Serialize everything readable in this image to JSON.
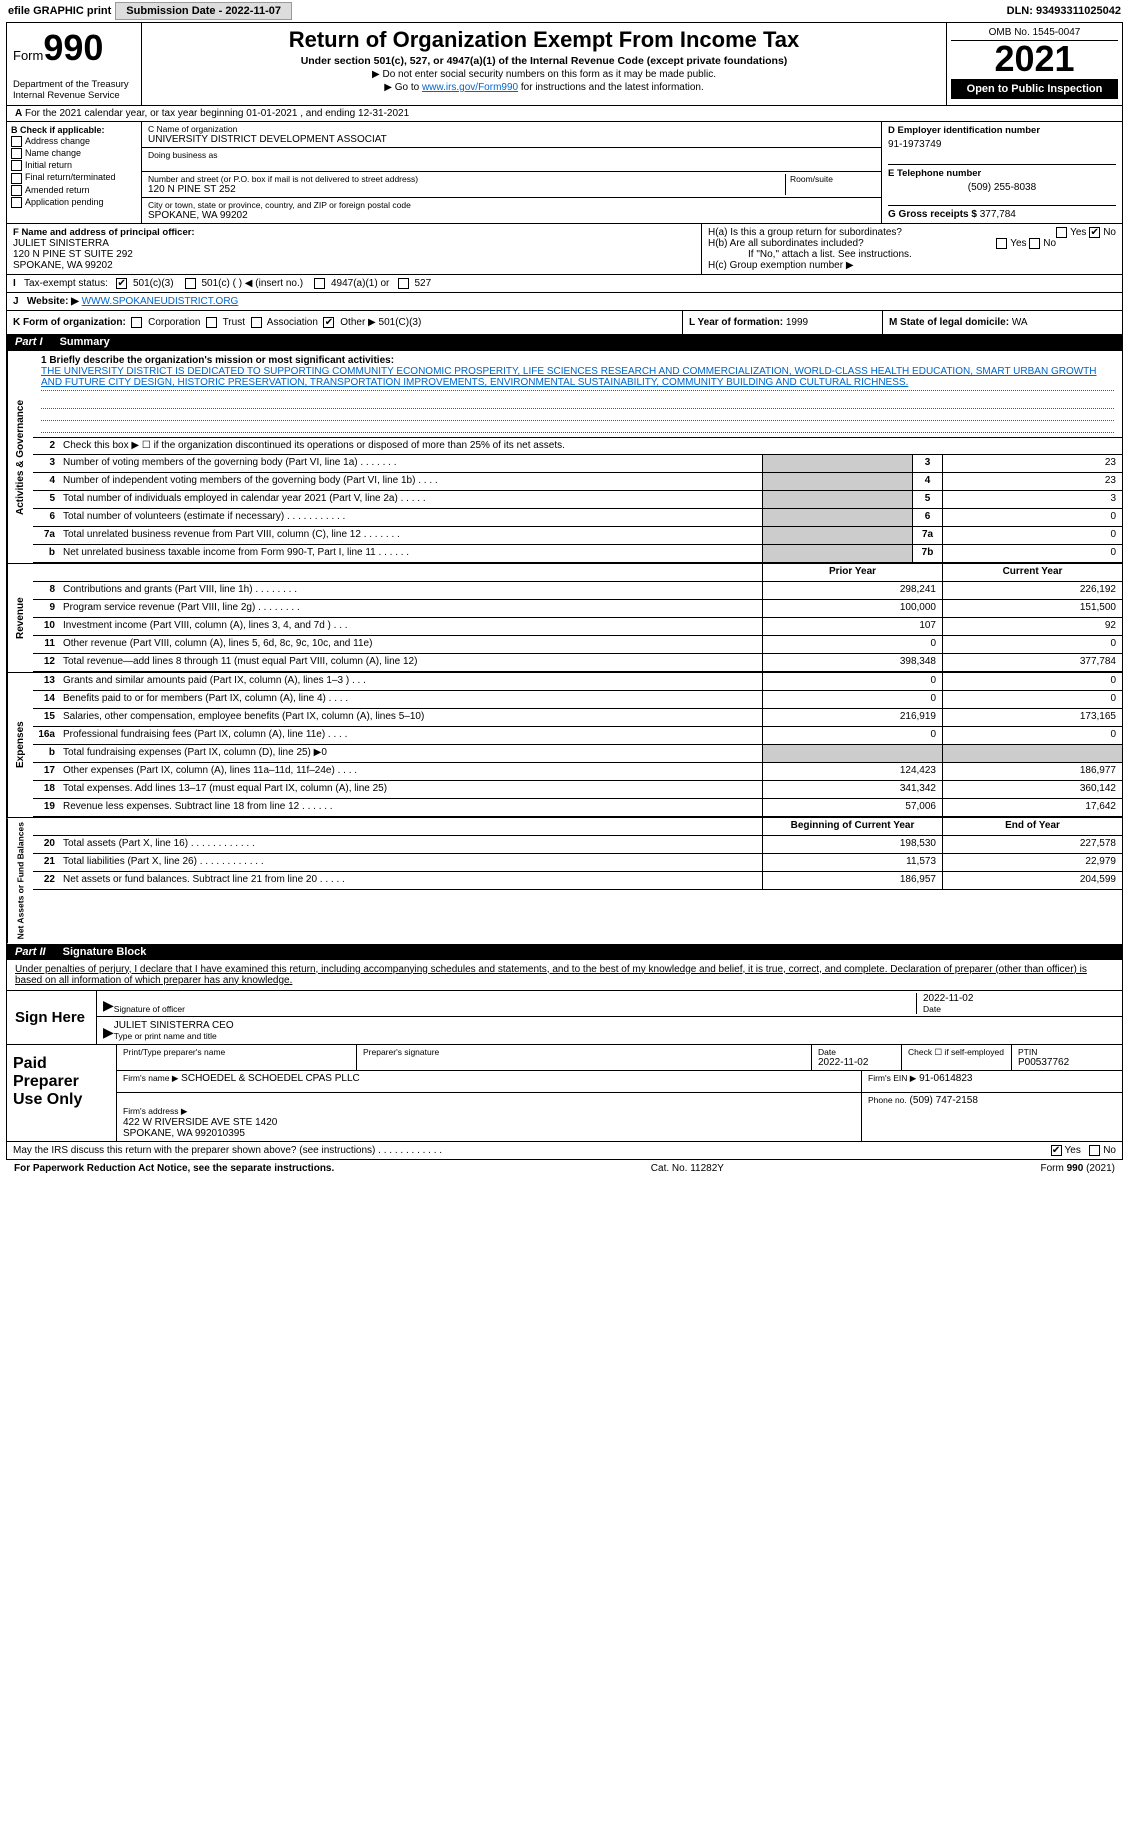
{
  "top_bar": {
    "efile_label": "efile GRAPHIC print",
    "submission_label": "Submission Date - 2022-11-07",
    "dln": "DLN: 93493311025042"
  },
  "header": {
    "form_label": "Form",
    "form_number": "990",
    "title": "Return of Organization Exempt From Income Tax",
    "subtitle": "Under section 501(c), 527, or 4947(a)(1) of the Internal Revenue Code (except private foundations)",
    "note1": "▶ Do not enter social security numbers on this form as it may be made public.",
    "note2_pre": "▶ Go to ",
    "note2_link": "www.irs.gov/Form990",
    "note2_post": " for instructions and the latest information.",
    "dept": "Department of the Treasury\nInternal Revenue Service",
    "omb": "OMB No. 1545-0047",
    "year": "2021",
    "open_pub": "Open to Public Inspection"
  },
  "line_a": "For the 2021 calendar year, or tax year beginning 01-01-2021    , and ending 12-31-2021",
  "box_b": {
    "label": "B Check if applicable:",
    "opts": [
      "Address change",
      "Name change",
      "Initial return",
      "Final return/terminated",
      "Amended return",
      "Application pending"
    ]
  },
  "box_c": {
    "name_label": "C Name of organization",
    "name": "UNIVERSITY DISTRICT DEVELOPMENT ASSOCIAT",
    "dba_label": "Doing business as",
    "addr_label": "Number and street (or P.O. box if mail is not delivered to street address)",
    "room_label": "Room/suite",
    "addr": "120 N PINE ST 252",
    "city_label": "City or town, state or province, country, and ZIP or foreign postal code",
    "city": "SPOKANE, WA  99202"
  },
  "box_d": {
    "label": "D Employer identification number",
    "val": "91-1973749",
    "e_label": "E Telephone number",
    "e_val": "(509) 255-8038",
    "g_label": "G Gross receipts $",
    "g_val": "377,784"
  },
  "box_f": {
    "label": "F Name and address of principal officer:",
    "name": "JULIET SINISTERRA",
    "addr": "120 N PINE ST SUITE 292\nSPOKANE, WA  99202"
  },
  "box_h": {
    "a_label": "H(a)  Is this a group return for subordinates?",
    "a_yes": "Yes",
    "a_no": "No",
    "b_label": "H(b)  Are all subordinates included?",
    "b_yes": "Yes",
    "b_no": "No",
    "b_note": "If \"No,\" attach a list. See instructions.",
    "c_label": "H(c)  Group exemption number ▶"
  },
  "tax_status_row": {
    "i_label": "I",
    "label": "Tax-exempt status:",
    "opt1": "501(c)(3)",
    "opt2": "501(c) (  ) ◀ (insert no.)",
    "opt3": "4947(a)(1) or",
    "opt4": "527"
  },
  "website_row": {
    "j_label": "J",
    "label": "Website: ▶",
    "url": "WWW.SPOKANEUDISTRICT.ORG"
  },
  "k_row": {
    "label": "K Form of organization:",
    "opts": [
      "Corporation",
      "Trust",
      "Association",
      "Other ▶"
    ],
    "other_val": "501(C)(3)",
    "l_label": "L Year of formation:",
    "l_val": "1999",
    "m_label": "M State of legal domicile:",
    "m_val": "WA"
  },
  "part1": {
    "header_pt": "Part I",
    "header_title": "Summary",
    "q1_label": "1 Briefly describe the organization's mission or most significant activities:",
    "mission": "THE UNIVERSITY DISTRICT IS DEDICATED TO SUPPORTING COMMUNITY ECONOMIC PROSPERITY, LIFE SCIENCES RESEARCH AND COMMERCIALIZATION, WORLD-CLASS HEALTH EDUCATION, SMART URBAN GROWTH AND FUTURE CITY DESIGN, HISTORIC PRESERVATION, TRANSPORTATION IMPROVEMENTS, ENVIRONMENTAL SUSTAINABILITY, COMMUNITY BUILDING AND CULTURAL RICHNESS.",
    "q2": "Check this box ▶ ☐  if the organization discontinued its operations or disposed of more than 25% of its net assets.",
    "side_ag": "Activities & Governance",
    "side_rev": "Revenue",
    "side_exp": "Expenses",
    "side_net": "Net Assets or Fund Balances",
    "col_prior": "Prior Year",
    "col_curr": "Current Year",
    "col_begin": "Beginning of Current Year",
    "col_end": "End of Year",
    "rows_ag": [
      {
        "n": "3",
        "d": "Number of voting members of the governing body (Part VI, line 1a)   .    .    .    .    .    .    .",
        "k": "3",
        "v": "23"
      },
      {
        "n": "4",
        "d": "Number of independent voting members of the governing body (Part VI, line 1b)    .    .    .    .",
        "k": "4",
        "v": "23"
      },
      {
        "n": "5",
        "d": "Total number of individuals employed in calendar year 2021 (Part V, line 2a)   .    .    .    .    .",
        "k": "5",
        "v": "3"
      },
      {
        "n": "6",
        "d": "Total number of volunteers (estimate if necessary)    .    .    .    .    .    .    .    .    .    .    .",
        "k": "6",
        "v": "0"
      },
      {
        "n": "7a",
        "d": "Total unrelated business revenue from Part VIII, column (C), line 12   .    .    .    .    .    .    .",
        "k": "7a",
        "v": "0"
      },
      {
        "n": "b",
        "d": "Net unrelated business taxable income from Form 990-T, Part I, line 11   .    .    .    .    .    .",
        "k": "7b",
        "v": "0"
      }
    ],
    "rows_rev": [
      {
        "n": "8",
        "d": "Contributions and grants (Part VIII, line 1h)    .    .    .    .    .    .    .    .",
        "p": "298,241",
        "c": "226,192"
      },
      {
        "n": "9",
        "d": "Program service revenue (Part VIII, line 2g)    .    .    .    .    .    .    .    .",
        "p": "100,000",
        "c": "151,500"
      },
      {
        "n": "10",
        "d": "Investment income (Part VIII, column (A), lines 3, 4, and 7d )   .    .    .",
        "p": "107",
        "c": "92"
      },
      {
        "n": "11",
        "d": "Other revenue (Part VIII, column (A), lines 5, 6d, 8c, 9c, 10c, and 11e)",
        "p": "0",
        "c": "0"
      },
      {
        "n": "12",
        "d": "Total revenue—add lines 8 through 11 (must equal Part VIII, column (A), line 12)",
        "p": "398,348",
        "c": "377,784"
      }
    ],
    "rows_exp": [
      {
        "n": "13",
        "d": "Grants and similar amounts paid (Part IX, column (A), lines 1–3 )   .    .    .",
        "p": "0",
        "c": "0"
      },
      {
        "n": "14",
        "d": "Benefits paid to or for members (Part IX, column (A), line 4)   .    .    .    .",
        "p": "0",
        "c": "0"
      },
      {
        "n": "15",
        "d": "Salaries, other compensation, employee benefits (Part IX, column (A), lines 5–10)",
        "p": "216,919",
        "c": "173,165"
      },
      {
        "n": "16a",
        "d": "Professional fundraising fees (Part IX, column (A), line 11e)   .    .    .    .",
        "p": "0",
        "c": "0"
      },
      {
        "n": "b",
        "d": "Total fundraising expenses (Part IX, column (D), line 25) ▶0",
        "p": "",
        "c": "",
        "shaded": true
      },
      {
        "n": "17",
        "d": "Other expenses (Part IX, column (A), lines 11a–11d, 11f–24e)   .    .    .    .",
        "p": "124,423",
        "c": "186,977"
      },
      {
        "n": "18",
        "d": "Total expenses. Add lines 13–17 (must equal Part IX, column (A), line 25)",
        "p": "341,342",
        "c": "360,142"
      },
      {
        "n": "19",
        "d": "Revenue less expenses. Subtract line 18 from line 12   .    .    .    .    .    .",
        "p": "57,006",
        "c": "17,642"
      }
    ],
    "rows_net": [
      {
        "n": "20",
        "d": "Total assets (Part X, line 16)   .    .    .    .    .    .    .    .    .    .    .    .",
        "p": "198,530",
        "c": "227,578"
      },
      {
        "n": "21",
        "d": "Total liabilities (Part X, line 26)   .    .    .    .    .    .    .    .    .    .    .    .",
        "p": "11,573",
        "c": "22,979"
      },
      {
        "n": "22",
        "d": "Net assets or fund balances. Subtract line 21 from line 20   .    .    .    .    .",
        "p": "186,957",
        "c": "204,599"
      }
    ]
  },
  "part2": {
    "header_pt": "Part II",
    "header_title": "Signature Block",
    "penalties": "Under penalties of perjury, I declare that I have examined this return, including accompanying schedules and statements, and to the best of my knowledge and belief, it is true, correct, and complete. Declaration of preparer (other than officer) is based on all information of which preparer has any knowledge.",
    "sign_here": "Sign Here",
    "sig_officer_label": "Signature of officer",
    "sig_date": "2022-11-02",
    "date_label": "Date",
    "officer_name": "JULIET SINISTERRA CEO",
    "officer_name_label": "Type or print name and title",
    "paid_prep": "Paid Preparer Use Only",
    "prep_name_label": "Print/Type preparer's name",
    "prep_sig_label": "Preparer's signature",
    "prep_date": "2022-11-02",
    "check_if": "Check ☐ if self-employed",
    "ptin_label": "PTIN",
    "ptin": "P00537762",
    "firm_name_label": "Firm's name   ▶",
    "firm_name": "SCHOEDEL & SCHOEDEL CPAS PLLC",
    "firm_ein_label": "Firm's EIN ▶",
    "firm_ein": "91-0614823",
    "firm_addr_label": "Firm's address ▶",
    "firm_addr": "422 W RIVERSIDE AVE STE 1420\nSPOKANE, WA  992010395",
    "phone_label": "Phone no.",
    "phone": "(509) 747-2158",
    "discuss": "May the IRS discuss this return with the preparer shown above? (see instructions)    .    .    .    .    .    .    .    .    .    .    .    .",
    "discuss_yes": "Yes",
    "discuss_no": "No"
  },
  "footer": {
    "left": "For Paperwork Reduction Act Notice, see the separate instructions.",
    "mid": "Cat. No. 11282Y",
    "right": "Form 990 (2021)"
  }
}
